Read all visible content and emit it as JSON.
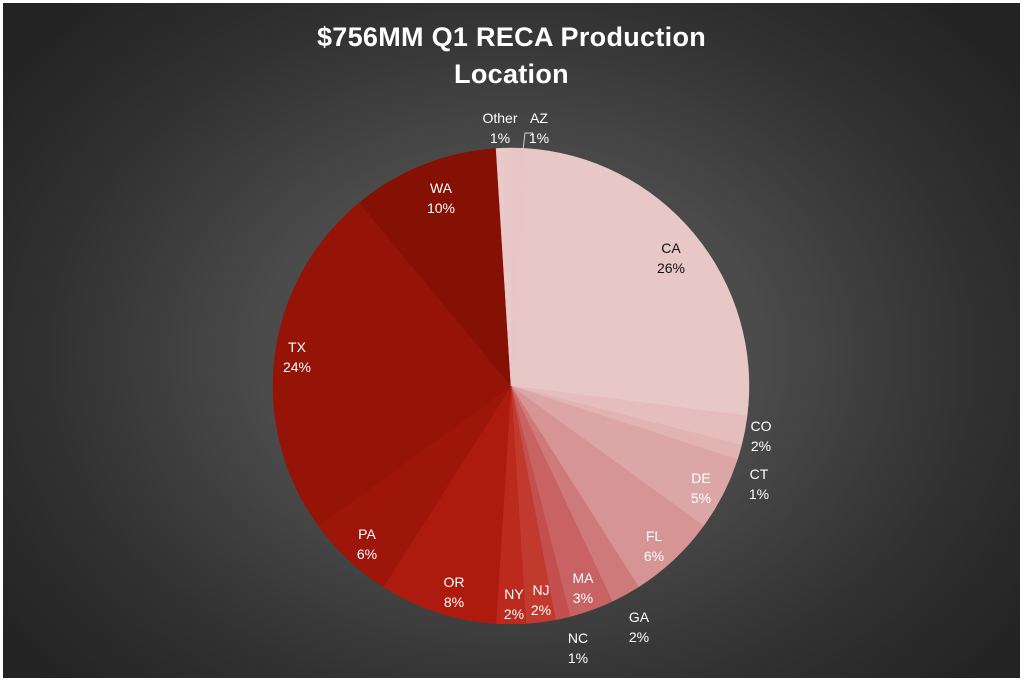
{
  "title_lines": [
    "$756MM Q1 RECA Production",
    "Location"
  ],
  "chart_data": {
    "type": "pie",
    "title": "$756MM Q1 RECA Production Location",
    "total_label": "$756MM",
    "start": "12 o'clock",
    "direction": "clockwise",
    "categories": [
      "AZ",
      "CA",
      "CO",
      "CT",
      "DE",
      "FL",
      "GA",
      "MA",
      "NC",
      "NJ",
      "NY",
      "OR",
      "PA",
      "TX",
      "WA",
      "Other"
    ],
    "values": [
      1,
      26,
      2,
      1,
      5,
      6,
      2,
      3,
      1,
      2,
      2,
      8,
      6,
      24,
      10,
      1
    ],
    "value_labels": [
      "1%",
      "26%",
      "2%",
      "1%",
      "5%",
      "6%",
      "2%",
      "3%",
      "1%",
      "2%",
      "2%",
      "8%",
      "6%",
      "24%",
      "10%",
      "1%"
    ],
    "colors": [
      "#e7c5c5",
      "#e8c7c7",
      "#e5bdbd",
      "#e2b3b3",
      "#dda6a6",
      "#d79494",
      "#cf7a7a",
      "#c96363",
      "#c44f4f",
      "#c23a2e",
      "#bb2a1c",
      "#ad1b0e",
      "#9e150a",
      "#951407",
      "#851104",
      "#e9c9c9"
    ]
  }
}
